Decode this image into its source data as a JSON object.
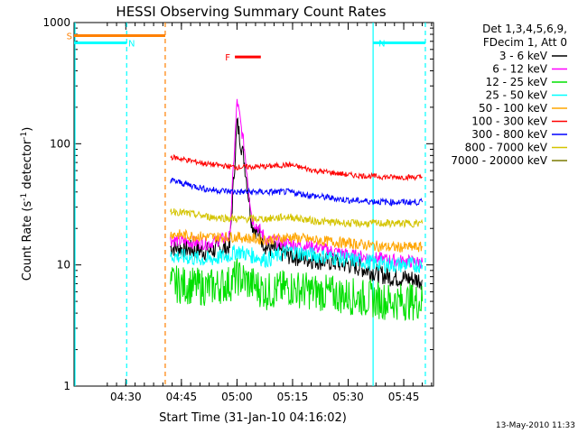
{
  "chart_data": {
    "type": "line",
    "title": "HESSI Observing Summary Count Rates",
    "xlabel": "Start Time (31-Jan-10 04:16:02)",
    "ylabel": "Count Rate (s⁻¹ detector⁻¹)",
    "ylabel_main": "Count Rate (s",
    "ylabel_mid": " detector",
    "ylabel_end": ")",
    "ylabel_sup": "-1",
    "y_scale": "log",
    "ylim": [
      1,
      1000
    ],
    "xlim_minutes_after_0416": [
      0,
      97
    ],
    "y_ticks": [
      "1",
      "10",
      "100",
      "1000"
    ],
    "x_ticks": [
      {
        "label": "04:30",
        "min": 13.97
      },
      {
        "label": "04:45",
        "min": 28.97
      },
      {
        "label": "05:00",
        "min": 43.97
      },
      {
        "label": "05:15",
        "min": 58.97
      },
      {
        "label": "05:30",
        "min": 73.97
      },
      {
        "label": "05:45",
        "min": 88.97
      }
    ],
    "legend": {
      "placement": "right",
      "header": [
        "Det 1,3,4,5,6,9,",
        "FDecim 1, Att 0"
      ]
    },
    "series": [
      {
        "name": "3 - 6 keV",
        "color": "#000000",
        "values": [
          [
            26,
            14
          ],
          [
            36,
            13
          ],
          [
            42,
            14
          ],
          [
            44,
            150
          ],
          [
            46,
            70
          ],
          [
            48,
            22
          ],
          [
            52,
            14
          ],
          [
            58,
            12
          ],
          [
            65,
            11
          ],
          [
            75,
            10
          ],
          [
            85,
            8
          ],
          [
            94,
            7.5
          ]
        ]
      },
      {
        "name": "6 - 12 keV",
        "color": "#ff00ff",
        "values": [
          [
            26,
            16
          ],
          [
            36,
            15
          ],
          [
            42,
            17
          ],
          [
            44,
            230
          ],
          [
            46,
            90
          ],
          [
            48,
            24
          ],
          [
            52,
            16
          ],
          [
            58,
            15
          ],
          [
            65,
            14
          ],
          [
            75,
            12
          ],
          [
            85,
            11
          ],
          [
            94,
            10.5
          ]
        ]
      },
      {
        "name": "12 - 25 keV",
        "color": "#00e000",
        "values": [
          [
            26,
            7
          ],
          [
            36,
            6.5
          ],
          [
            42,
            7
          ],
          [
            44,
            8
          ],
          [
            52,
            6
          ],
          [
            58,
            6.5
          ],
          [
            65,
            6
          ],
          [
            75,
            5.5
          ],
          [
            85,
            5
          ],
          [
            94,
            5
          ]
        ]
      },
      {
        "name": "25 - 50 keV",
        "color": "#00ffff",
        "values": [
          [
            26,
            12
          ],
          [
            36,
            11
          ],
          [
            42,
            12
          ],
          [
            44,
            13
          ],
          [
            52,
            11
          ],
          [
            58,
            13
          ],
          [
            65,
            12
          ],
          [
            75,
            11
          ],
          [
            85,
            10
          ],
          [
            94,
            10
          ]
        ]
      },
      {
        "name": "50 - 100 keV",
        "color": "#ffa500",
        "values": [
          [
            26,
            18
          ],
          [
            36,
            17
          ],
          [
            44,
            17
          ],
          [
            52,
            16
          ],
          [
            58,
            17
          ],
          [
            65,
            16
          ],
          [
            75,
            15
          ],
          [
            85,
            14
          ],
          [
            94,
            14
          ]
        ]
      },
      {
        "name": "100 - 300 keV",
        "color": "#ff0000",
        "values": [
          [
            26,
            78
          ],
          [
            36,
            68
          ],
          [
            44,
            64
          ],
          [
            52,
            65
          ],
          [
            58,
            67
          ],
          [
            65,
            60
          ],
          [
            75,
            55
          ],
          [
            85,
            53
          ],
          [
            94,
            53
          ]
        ]
      },
      {
        "name": "300 - 800 keV",
        "color": "#0000ff",
        "values": [
          [
            26,
            50
          ],
          [
            36,
            42
          ],
          [
            44,
            40
          ],
          [
            52,
            40
          ],
          [
            58,
            40
          ],
          [
            65,
            37
          ],
          [
            75,
            34
          ],
          [
            85,
            33
          ],
          [
            94,
            33
          ]
        ]
      },
      {
        "name": "800 - 7000 keV",
        "color": "#d4c400",
        "values": [
          [
            26,
            28
          ],
          [
            36,
            25
          ],
          [
            44,
            24
          ],
          [
            52,
            24
          ],
          [
            58,
            25
          ],
          [
            65,
            23
          ],
          [
            75,
            22
          ],
          [
            85,
            22
          ],
          [
            94,
            22
          ]
        ]
      },
      {
        "name": "7000 - 20000 keV",
        "color": "#7a7a00",
        "values": []
      }
    ],
    "flags": [
      {
        "label": "S",
        "color": "#ff8000",
        "start_min": 0,
        "end_min": 24.6,
        "y": 780
      },
      {
        "label": "N",
        "color": "#00ffff",
        "start_min": 0,
        "end_min": 14.2,
        "y": 680
      },
      {
        "label": "N",
        "color": "#00ffff",
        "start_min": 80.7,
        "end_min": 94.8,
        "y": 680
      },
      {
        "label": "F",
        "color": "#ff0000",
        "start_min": 43.4,
        "end_min": 50.4,
        "y": 520
      }
    ],
    "vertical_markers": [
      {
        "min": 0.25,
        "color": "#00ffff",
        "style": "solid"
      },
      {
        "min": 14.2,
        "color": "#00ffff",
        "style": "dashed"
      },
      {
        "min": 24.6,
        "color": "#ff8000",
        "style": "dashed"
      },
      {
        "min": 80.7,
        "color": "#00ffff",
        "style": "solid"
      },
      {
        "min": 94.8,
        "color": "#00ffff",
        "style": "dashed"
      }
    ]
  },
  "footer": {
    "timestamp": "13-May-2010 11:33"
  }
}
